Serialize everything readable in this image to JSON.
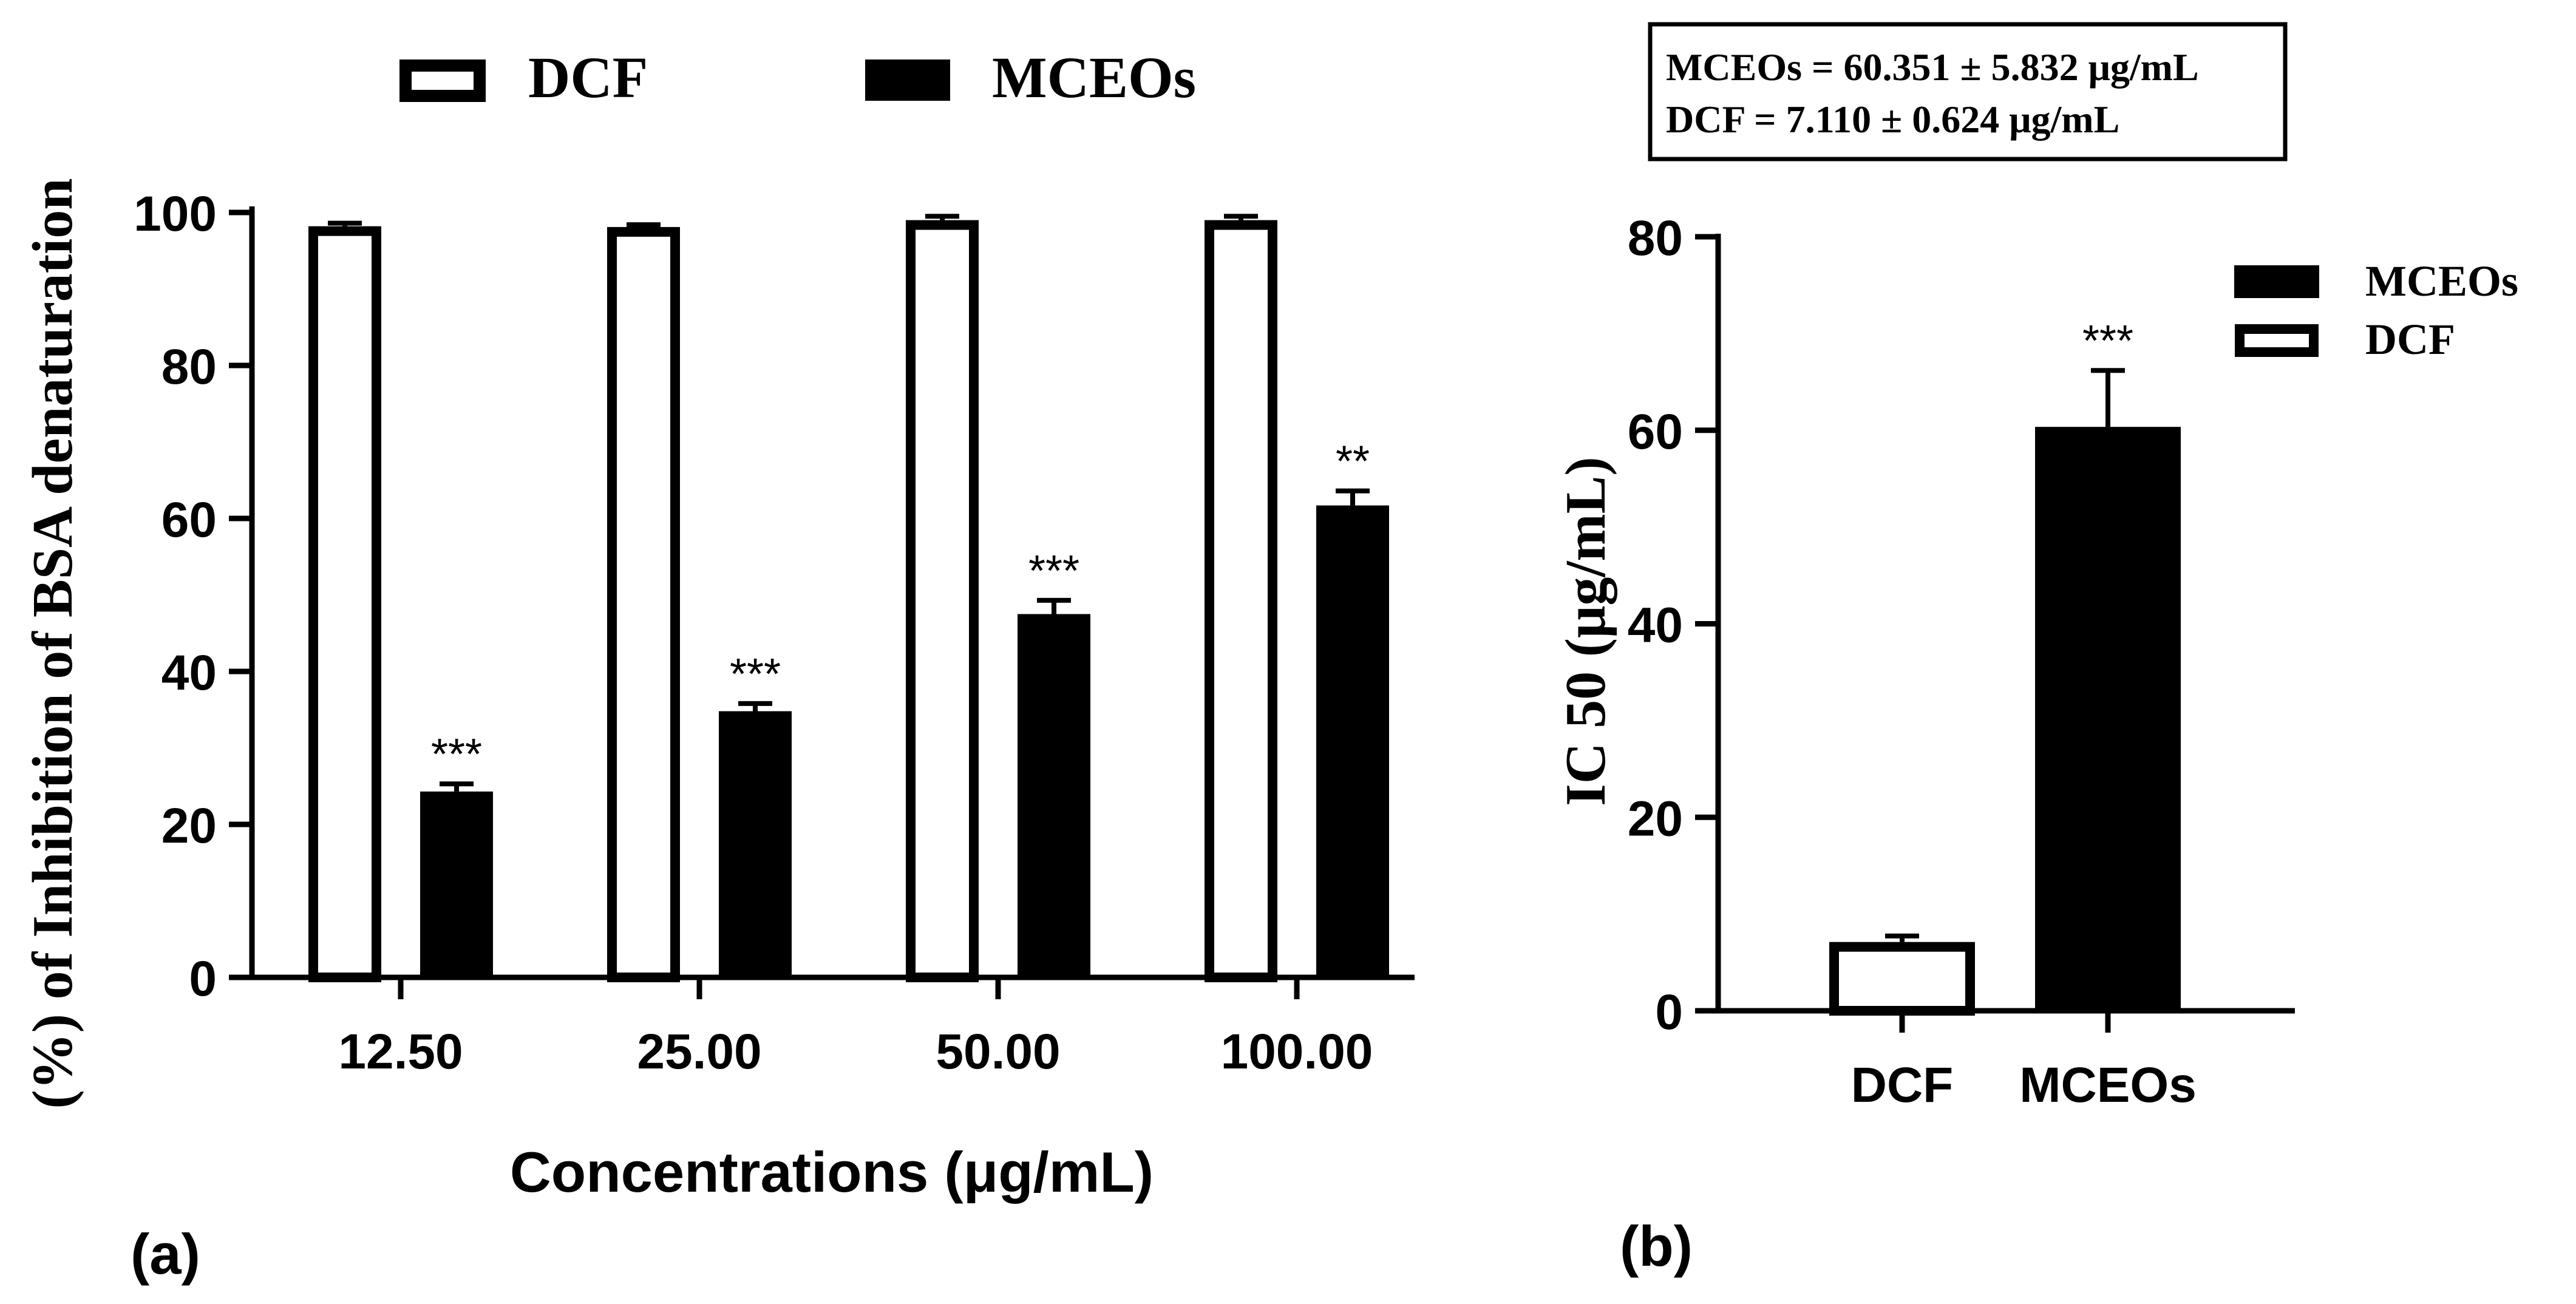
{
  "chart_data": [
    {
      "panel": "a",
      "panel_label": "(a)",
      "type": "bar",
      "categories": [
        "12.50",
        "25.00",
        "50.00",
        "100.00"
      ],
      "series": [
        {
          "name": "DCF",
          "values": [
            98.2,
            98.1,
            99.0,
            99.0
          ],
          "errors": [
            0.4,
            0.3,
            0.5,
            0.5
          ],
          "significance": [
            "",
            "",
            "",
            ""
          ],
          "fill": "#ffffff"
        },
        {
          "name": "MCEOs",
          "values": [
            24.3,
            34.8,
            47.5,
            61.7
          ],
          "errors": [
            1.0,
            1.0,
            1.8,
            1.9
          ],
          "significance": [
            "***",
            "***",
            "***",
            "**"
          ],
          "fill": "#000000"
        }
      ],
      "xlabel": "Concentrations (μg/mL)",
      "ylabel": "(%) of Inhibition of BSA denaturation",
      "ylim": [
        0,
        100
      ],
      "yticks": [
        "0",
        "20",
        "40",
        "60",
        "80",
        "100"
      ],
      "legend_position": "top"
    },
    {
      "panel": "b",
      "panel_label": "(b)",
      "type": "bar",
      "categories": [
        "DCF",
        "MCEOs"
      ],
      "values": [
        7.11,
        60.351
      ],
      "errors": [
        0.624,
        5.832
      ],
      "significance": [
        "",
        "***"
      ],
      "fills": [
        "#ffffff",
        "#000000"
      ],
      "ylabel": "IC 50 (μg/mL)",
      "ylim": [
        0,
        80
      ],
      "yticks": [
        "0",
        "20",
        "40",
        "60",
        "80"
      ],
      "legend": [
        {
          "name": "MCEOs",
          "fill": "#000000"
        },
        {
          "name": "DCF",
          "fill": "#ffffff"
        }
      ],
      "legend_position": "right",
      "annotation": [
        "MCEOs = 60.351 ± 5.832 μg/mL",
        "DCF = 7.110 ± 0.624 μg/mL"
      ]
    }
  ]
}
